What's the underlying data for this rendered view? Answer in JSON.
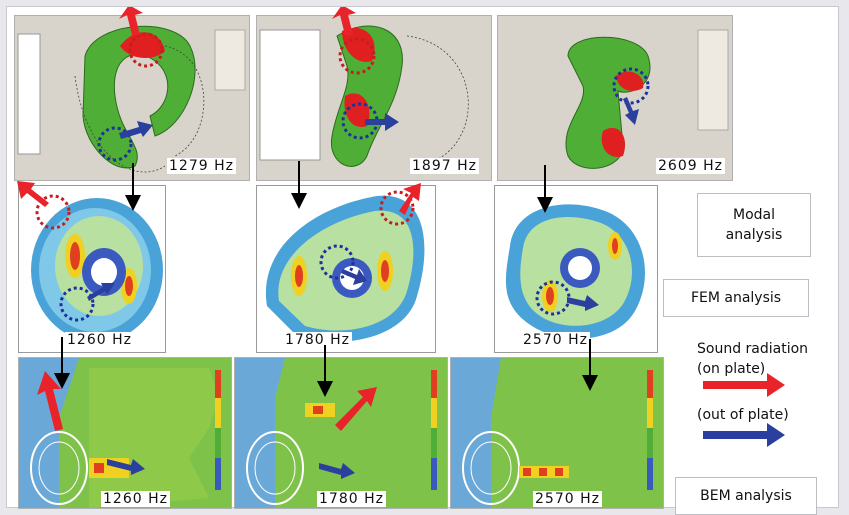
{
  "rows": {
    "modal": {
      "frequencies": [
        "1279 Hz",
        "1897 Hz",
        "2609 Hz"
      ]
    },
    "fem": {
      "frequencies": [
        "1260 Hz",
        "1780 Hz",
        "2570 Hz"
      ]
    },
    "bem": {
      "frequencies": [
        "1260 Hz",
        "1780 Hz",
        "2570 Hz"
      ]
    }
  },
  "legend": {
    "modal_label": "Modal analysis",
    "fem_label": "FEM analysis",
    "bem_label": "BEM analysis",
    "sound_radiation": "Sound radiation",
    "on_plate": "(on plate)",
    "out_of_plate": "(out of plate)"
  },
  "colors": {
    "on_plate_arrow": "#e8232a",
    "out_of_plate_arrow": "#2a3f9e",
    "green_field": "#6fbf3a",
    "blue_background": "#6aa8d8"
  }
}
